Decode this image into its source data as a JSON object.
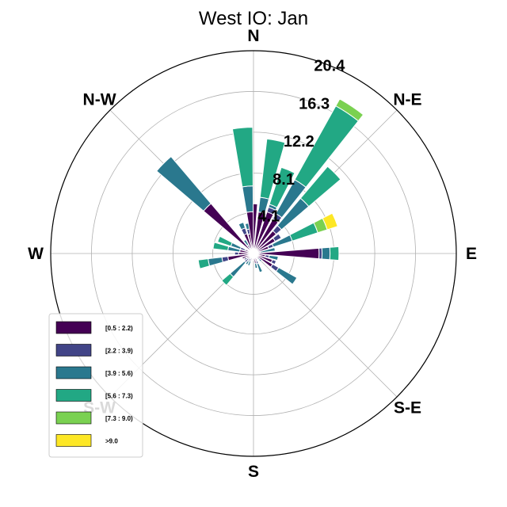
{
  "chart_data": {
    "type": "windrose",
    "title": "West IO: Jan",
    "directions": [
      "E",
      "N-E",
      "N",
      "N-W",
      "W",
      "S-W",
      "S",
      "S-E"
    ],
    "ring_labels": [
      "4.1",
      "8.1",
      "12.2",
      "16.3",
      "20.4"
    ],
    "rmax": 20.4,
    "legend": {
      "placement": "lower-left",
      "entries": [
        {
          "label": "[0.5 : 2.2)",
          "color": "#440154"
        },
        {
          "label": "[2.2 : 3.9)",
          "color": "#414487"
        },
        {
          "label": "[3.9 : 5.6)",
          "color": "#2a788e"
        },
        {
          "label": "[5.6 : 7.3)",
          "color": "#22a884"
        },
        {
          "label": "[7.3 : 9.0)",
          "color": "#7ad151"
        },
        {
          "label": ">9.0",
          "color": "#fde725"
        }
      ]
    },
    "sectors": [
      {
        "angle": 90,
        "values": [
          5.0,
          0.0,
          0.0,
          0.0,
          0.0,
          0.0
        ]
      },
      {
        "angle": 78.75,
        "values": [
          4.2,
          0.0,
          1.5,
          5.9,
          0.0,
          0.0
        ]
      },
      {
        "angle": 67.5,
        "values": [
          4.4,
          0.5,
          0.3,
          3.9,
          0.0,
          0.0
        ]
      },
      {
        "angle": 56.25,
        "values": [
          4.0,
          0.6,
          3.9,
          8.5,
          0.8,
          0.0
        ]
      },
      {
        "angle": 45,
        "values": [
          3.0,
          0.7,
          3.6,
          4.2,
          0.0,
          0.0
        ]
      },
      {
        "angle": 33.75,
        "values": [
          2.5,
          0.7,
          0.0,
          0.0,
          0.0,
          0.0
        ]
      },
      {
        "angle": 22.5,
        "values": [
          1.6,
          0.5,
          2.0,
          2.7,
          1.0,
          1.1
        ]
      },
      {
        "angle": 11.25,
        "values": [
          0.0,
          0.7,
          1.5,
          0.0,
          0.0,
          0.0
        ]
      },
      {
        "angle": 0,
        "values": [
          6.6,
          0.3,
          0.8,
          0.9,
          0.0,
          0.0
        ]
      },
      {
        "angle": 348.75,
        "values": [
          1.2,
          0.4,
          0.9,
          0.0,
          0.0,
          0.0
        ]
      },
      {
        "angle": 337.5,
        "values": [
          2.0,
          0.4,
          0.0,
          0.0,
          0.0,
          0.0
        ]
      },
      {
        "angle": 326.25,
        "values": [
          2.2,
          0.7,
          2.1,
          0.0,
          0.0,
          0.0
        ]
      },
      {
        "angle": 315,
        "values": [
          0.5,
          0.3,
          0.3,
          0.0,
          0.0,
          0.0
        ]
      },
      {
        "angle": 303.75,
        "values": [
          0.6,
          0.0,
          0.0,
          0.0,
          0.0,
          0.0
        ]
      },
      {
        "angle": 292.5,
        "values": [
          0.8,
          0.3,
          0.9,
          0.0,
          0.0,
          0.0
        ]
      },
      {
        "angle": 281.25,
        "values": [
          1.0,
          0.0,
          0.5,
          0.0,
          0.0,
          0.0
        ]
      },
      {
        "angle": 270,
        "values": [
          0.7,
          0.0,
          0.0,
          0.0,
          0.0,
          0.0
        ]
      },
      {
        "angle": 258.75,
        "values": [
          0.5,
          0.0,
          0.0,
          0.0,
          0.0,
          0.0
        ]
      },
      {
        "angle": 247.5,
        "values": [
          0.5,
          0.3,
          0.5,
          0.0,
          0.0,
          0.0
        ]
      },
      {
        "angle": 236.25,
        "values": [
          0.6,
          0.3,
          0.4,
          0.0,
          0.0,
          0.0
        ]
      },
      {
        "angle": 225,
        "values": [
          0.7,
          0.5,
          1.9,
          1.1,
          0.0,
          0.0
        ]
      },
      {
        "angle": 213.75,
        "values": [
          0.8,
          0.3,
          0.0,
          0.0,
          0.0,
          0.0
        ]
      },
      {
        "angle": 202.5,
        "values": [
          1.2,
          0.0,
          0.0,
          0.0,
          0.0,
          0.0
        ]
      },
      {
        "angle": 191.25,
        "values": [
          2.6,
          0.6,
          1.4,
          1.0,
          0.0,
          0.0
        ]
      },
      {
        "angle": 180,
        "values": [
          1.5,
          0.4,
          0.0,
          0.0,
          0.0,
          0.0
        ]
      },
      {
        "angle": 168.75,
        "values": [
          1.4,
          0.0,
          1.2,
          1.5,
          0.0,
          0.0
        ]
      },
      {
        "angle": 157.5,
        "values": [
          0.9,
          0.5,
          1.0,
          1.4,
          0.0,
          0.0
        ]
      },
      {
        "angle": 146.25,
        "values": [
          0.0,
          0.5,
          0.0,
          0.0,
          0.0,
          0.0
        ]
      },
      {
        "angle": 135,
        "values": [
          6.6,
          0.0,
          6.2,
          0.0,
          0.0,
          0.0
        ]
      },
      {
        "angle": 123.75,
        "values": [
          0.6,
          0.4,
          0.6,
          0.0,
          0.0,
          0.0
        ]
      },
      {
        "angle": 112.5,
        "values": [
          2.1,
          0.6,
          0.6,
          0.0,
          0.0,
          0.0
        ]
      },
      {
        "angle": 101.25,
        "values": [
          2.0,
          0.5,
          0.6,
          0.0,
          0.0,
          0.0
        ]
      },
      {
        "angle": 95,
        "values": [
          4.2,
          0.0,
          2.6,
          5.9,
          0.0,
          0.0
        ]
      }
    ]
  }
}
